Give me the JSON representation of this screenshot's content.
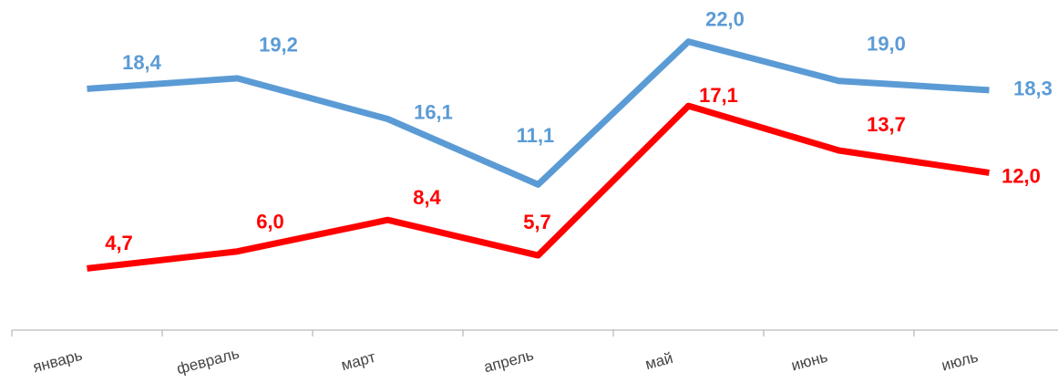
{
  "chart_data": {
    "type": "line",
    "categories": [
      "январь",
      "февраль",
      "март",
      "апрель",
      "май",
      "июнь",
      "июль"
    ],
    "series": [
      {
        "color": "#5b9bd5",
        "values": [
          18.4,
          19.2,
          16.1,
          11.1,
          22.0,
          19.0,
          18.3
        ],
        "value_labels": [
          "18,4",
          "19,2",
          "16,1",
          "11,1",
          "22,0",
          "19,0",
          "18,3"
        ]
      },
      {
        "color": "#ff0000",
        "values": [
          4.7,
          6.0,
          8.4,
          5.7,
          17.1,
          13.7,
          12.0
        ],
        "value_labels": [
          "4,7",
          "6,0",
          "8,4",
          "5,7",
          "17,1",
          "13,7",
          "12,0"
        ]
      }
    ],
    "ylim": [
      0,
      25
    ]
  }
}
